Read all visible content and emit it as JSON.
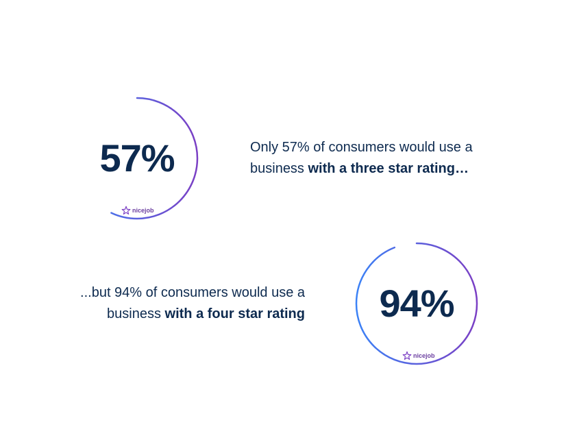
{
  "colors": {
    "text_dark": "#0d2a4f",
    "ring_gradient_start": "#3b82f6",
    "ring_gradient_end": "#7b3fc4",
    "brand_purple": "#6b3fa0"
  },
  "stats": [
    {
      "value_text": "57%",
      "ring_fill_fraction": 0.57,
      "brand": {
        "icon": "nicejob-star-icon",
        "name": "nicejob"
      },
      "caption": {
        "line1": "Only 57% of consumers would use a",
        "line2_plain": "business ",
        "line2_bold": "with a three star rating…"
      }
    },
    {
      "value_text": "94%",
      "ring_fill_fraction": 0.94,
      "brand": {
        "icon": "nicejob-star-icon",
        "name": "nicejob"
      },
      "caption": {
        "line1": "...but 94% of consumers would use a",
        "line2_plain": "business ",
        "line2_bold": "with a four star rating"
      }
    }
  ]
}
